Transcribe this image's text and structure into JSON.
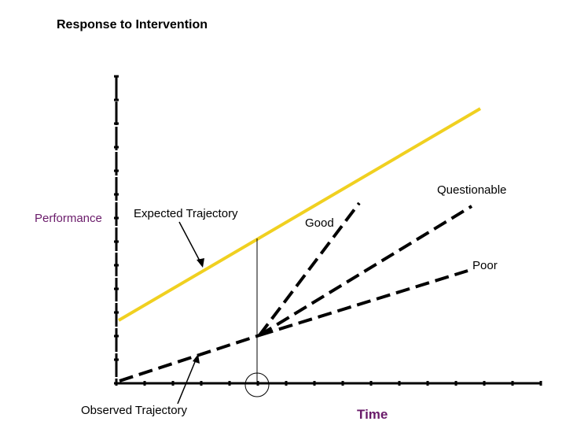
{
  "title": "Response to Intervention",
  "labels": {
    "performance": "Performance",
    "expected_trajectory": "Expected Trajectory",
    "good": "Good",
    "questionable": "Questionable",
    "poor": "Poor",
    "observed_trajectory": "Observed Trajectory",
    "time": "Time"
  },
  "colors": {
    "expected_line": "#f0d020",
    "performance_label": "#6a1b6a",
    "time_label": "#6a1b6a",
    "axes": "#000000",
    "trajectory_lines": "#000000"
  }
}
